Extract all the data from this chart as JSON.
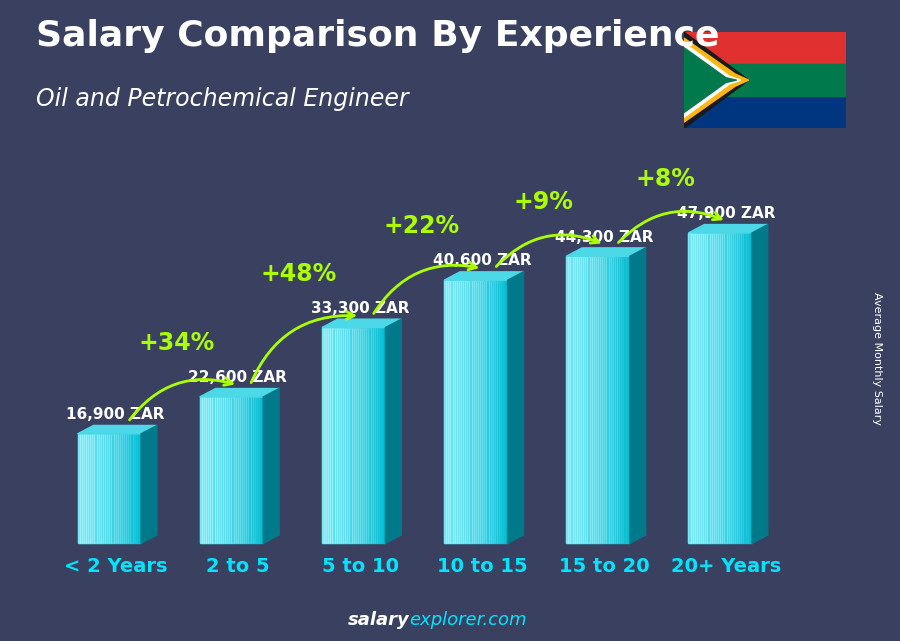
{
  "title": "Salary Comparison By Experience",
  "subtitle": "Oil and Petrochemical Engineer",
  "ylabel": "Average Monthly Salary",
  "categories": [
    "< 2 Years",
    "2 to 5",
    "5 to 10",
    "10 to 15",
    "15 to 20",
    "20+ Years"
  ],
  "values": [
    16900,
    22600,
    33300,
    40600,
    44300,
    47900
  ],
  "labels": [
    "16,900 ZAR",
    "22,600 ZAR",
    "33,300 ZAR",
    "40,600 ZAR",
    "44,300 ZAR",
    "47,900 ZAR"
  ],
  "increases": [
    null,
    "+34%",
    "+48%",
    "+22%",
    "+9%",
    "+8%"
  ],
  "bar_color_front": "#00bcd4",
  "bar_color_top": "#4dd8e8",
  "bar_color_side": "#007a8a",
  "bg_color": "#3a4060",
  "title_color": "#ffffff",
  "label_color": "#ffffff",
  "increase_color": "#aaff00",
  "cat_color": "#00e5ff",
  "watermark_salary_color": "#ffffff",
  "watermark_explorer_color": "#00e5ff",
  "title_fontsize": 26,
  "subtitle_fontsize": 17,
  "label_fontsize": 11,
  "increase_fontsize": 17,
  "cat_fontsize": 14,
  "watermark_fontsize": 13,
  "ylabel_fontsize": 8
}
